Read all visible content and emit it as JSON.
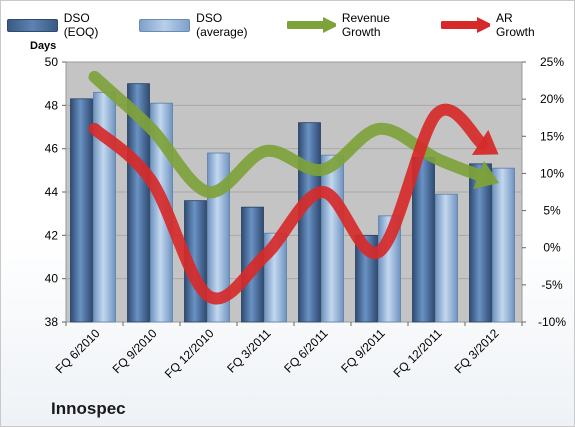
{
  "chart_data": {
    "type": "bar",
    "categories": [
      "FQ 6/2010",
      "FQ 9/2010",
      "FQ 12/2010",
      "FQ 3/2011",
      "FQ 6/2011",
      "FQ 9/2011",
      "FQ 12/2011",
      "FQ 3/2012"
    ],
    "series": [
      {
        "name": "DSO (EOQ)",
        "axis": "left",
        "type": "bar",
        "values": [
          48.3,
          49.0,
          43.6,
          43.3,
          47.2,
          42.0,
          45.6,
          45.3
        ]
      },
      {
        "name": "DSO (average)",
        "axis": "left",
        "type": "bar",
        "values": [
          48.6,
          48.1,
          45.8,
          42.1,
          45.7,
          42.9,
          43.9,
          45.1
        ]
      },
      {
        "name": "Revenue Growth",
        "axis": "right",
        "type": "line",
        "values": [
          23,
          16,
          7.5,
          13,
          10.5,
          16,
          12,
          9
        ]
      },
      {
        "name": "AR Growth",
        "axis": "right",
        "type": "line",
        "values": [
          16,
          9,
          -6.5,
          -1,
          7.5,
          -0.5,
          18,
          13
        ]
      }
    ],
    "ylabel": "Days",
    "ylim": [
      38,
      50
    ],
    "yticks": [
      "38",
      "40",
      "42",
      "44",
      "46",
      "48",
      "50"
    ],
    "y2lim": [
      -10,
      25
    ],
    "y2ticks": [
      "-10%",
      "-5%",
      "0%",
      "5%",
      "10%",
      "15%",
      "20%",
      "25%"
    ],
    "grid": true,
    "legend": "top"
  },
  "brand": "Innospec",
  "colors": {
    "bar_eoq": "#4a6d9a",
    "bar_avg": "#8fb0d6",
    "revenue_growth": "#7ea23a",
    "ar_growth": "#d62a2a",
    "plot_bg": "#c4c4c4"
  }
}
